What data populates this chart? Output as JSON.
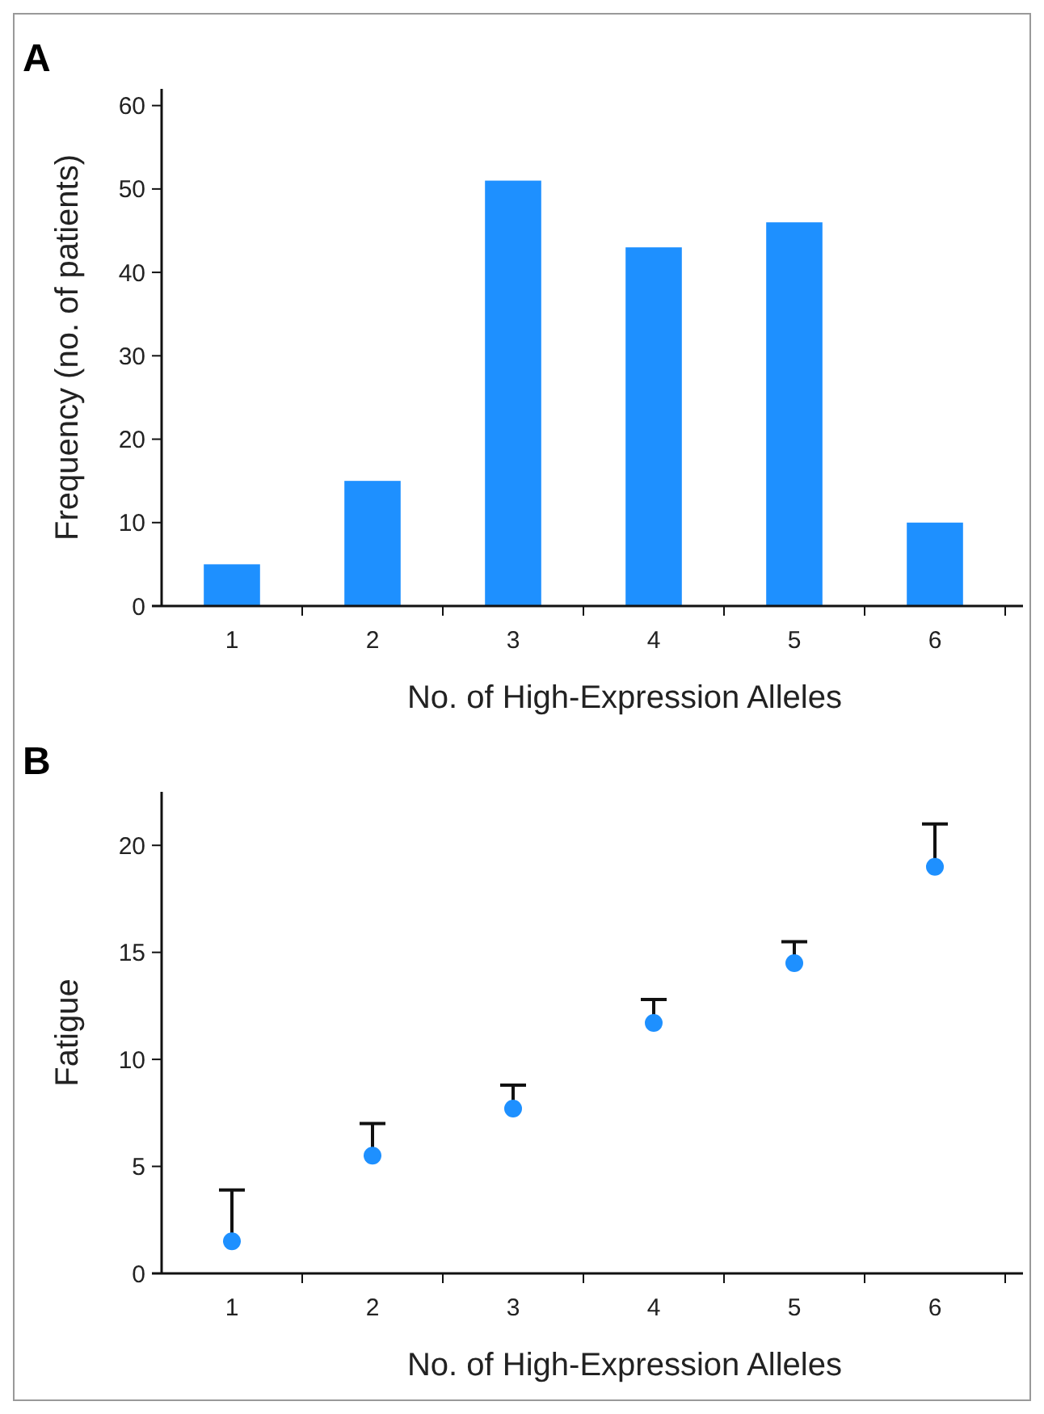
{
  "chart_data": [
    {
      "type": "bar",
      "title": "A",
      "xlabel": "No. of High-Expression Alleles",
      "ylabel": "Frequency (no. of patients)",
      "categories": [
        "1",
        "2",
        "3",
        "4",
        "5",
        "6"
      ],
      "values": [
        5,
        15,
        51,
        43,
        46,
        10
      ],
      "color": "#1e90ff",
      "ylim": [
        0,
        62
      ],
      "yticks": [
        0,
        10,
        20,
        30,
        40,
        50,
        60
      ],
      "grid": false
    },
    {
      "type": "scatter",
      "title": "B",
      "xlabel": "No. of High-Expression Alleles",
      "ylabel": "Fatigue",
      "categories": [
        "1",
        "2",
        "3",
        "4",
        "5",
        "6"
      ],
      "values": [
        1.5,
        5.5,
        7.7,
        11.7,
        14.5,
        19.0
      ],
      "errors": [
        [
          1.5,
          3.9
        ],
        [
          5.5,
          7.0
        ],
        [
          7.7,
          8.8
        ],
        [
          11.7,
          12.8
        ],
        [
          14.5,
          15.5
        ],
        [
          19.0,
          21.0
        ]
      ],
      "color": "#1e90ff",
      "marker": "circle",
      "ylim": [
        0,
        22.5
      ],
      "yticks": [
        0,
        5,
        10,
        15,
        20
      ],
      "grid": false
    }
  ]
}
